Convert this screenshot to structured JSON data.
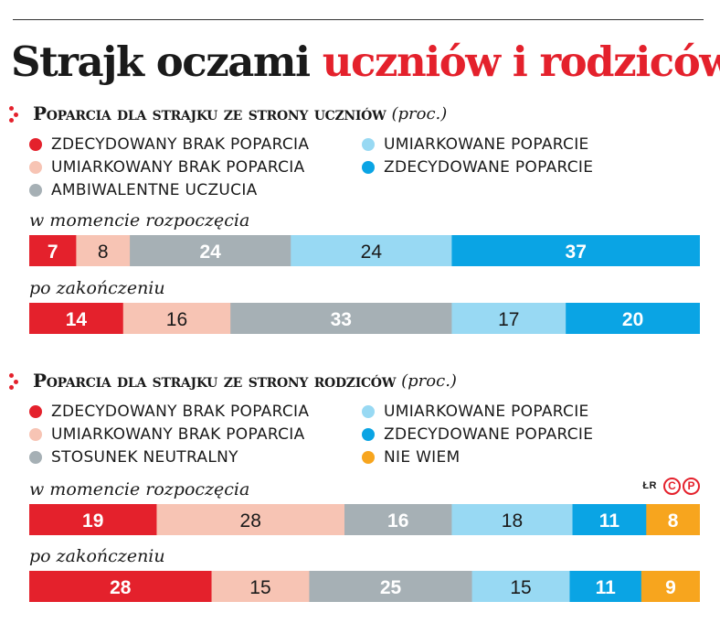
{
  "title": {
    "part1": "Strajk oczami",
    "part2": "uczniów i rodziców"
  },
  "credit": {
    "initials": "ŁR",
    "badge1": "C",
    "badge2": "P"
  },
  "colors": {
    "strong_no": "#e4212c",
    "mild_no": "#f7c4b4",
    "neutral": "#a6b0b5",
    "mild_yes": "#98d9f3",
    "strong_yes": "#0aa4e4",
    "dont_know": "#f7a51e"
  },
  "chart_data": [
    {
      "type": "bar",
      "orientation": "horizontal-stacked",
      "title": "Poparcia dla strajku ze strony uczniów",
      "unit": "(proc.)",
      "legend": [
        {
          "key": "strong_no",
          "label": "ZDECYDOWANY BRAK POPARCIA"
        },
        {
          "key": "mild_no",
          "label": "UMIARKOWANY BRAK POPARCIA"
        },
        {
          "key": "neutral",
          "label": "AMBIWALENTNE UCZUCIA"
        },
        {
          "key": "mild_yes",
          "label": "UMIARKOWANE POPARCIE"
        },
        {
          "key": "strong_yes",
          "label": "ZDECYDOWANE POPARCIE"
        }
      ],
      "categories": [
        "w momencie rozpoczęcia",
        "po zakończeniu"
      ],
      "series": [
        {
          "name": "ZDECYDOWANY BRAK POPARCIA",
          "key": "strong_no",
          "values": [
            7,
            14
          ]
        },
        {
          "name": "UMIARKOWANY BRAK POPARCIA",
          "key": "mild_no",
          "values": [
            8,
            16
          ]
        },
        {
          "name": "AMBIWALENTNE UCZUCIA",
          "key": "neutral",
          "values": [
            24,
            33
          ]
        },
        {
          "name": "UMIARKOWANE POPARCIE",
          "key": "mild_yes",
          "values": [
            24,
            17
          ]
        },
        {
          "name": "ZDECYDOWANE POPARCIE",
          "key": "strong_yes",
          "values": [
            37,
            20
          ]
        }
      ]
    },
    {
      "type": "bar",
      "orientation": "horizontal-stacked",
      "title": "Poparcia dla strajku ze strony rodziców",
      "unit": "(proc.)",
      "legend": [
        {
          "key": "strong_no",
          "label": "ZDECYDOWANY BRAK POPARCIA"
        },
        {
          "key": "mild_no",
          "label": "UMIARKOWANY BRAK POPARCIA"
        },
        {
          "key": "neutral",
          "label": "STOSUNEK NEUTRALNY"
        },
        {
          "key": "mild_yes",
          "label": "UMIARKOWANE POPARCIE"
        },
        {
          "key": "strong_yes",
          "label": "ZDECYDOWANE POPARCIE"
        },
        {
          "key": "dont_know",
          "label": "NIE WIEM"
        }
      ],
      "categories": [
        "w momencie rozpoczęcia",
        "po zakończeniu"
      ],
      "series": [
        {
          "name": "ZDECYDOWANY BRAK POPARCIA",
          "key": "strong_no",
          "values": [
            19,
            28
          ]
        },
        {
          "name": "UMIARKOWANY BRAK POPARCIA",
          "key": "mild_no",
          "values": [
            28,
            15
          ]
        },
        {
          "name": "STOSUNEK NEUTRALNY",
          "key": "neutral",
          "values": [
            16,
            25
          ]
        },
        {
          "name": "UMIARKOWANE POPARCIE",
          "key": "mild_yes",
          "values": [
            18,
            15
          ]
        },
        {
          "name": "ZDECYDOWANE POPARCIE",
          "key": "strong_yes",
          "values": [
            11,
            11
          ]
        },
        {
          "name": "NIE WIEM",
          "key": "dont_know",
          "values": [
            8,
            9
          ]
        }
      ]
    }
  ]
}
